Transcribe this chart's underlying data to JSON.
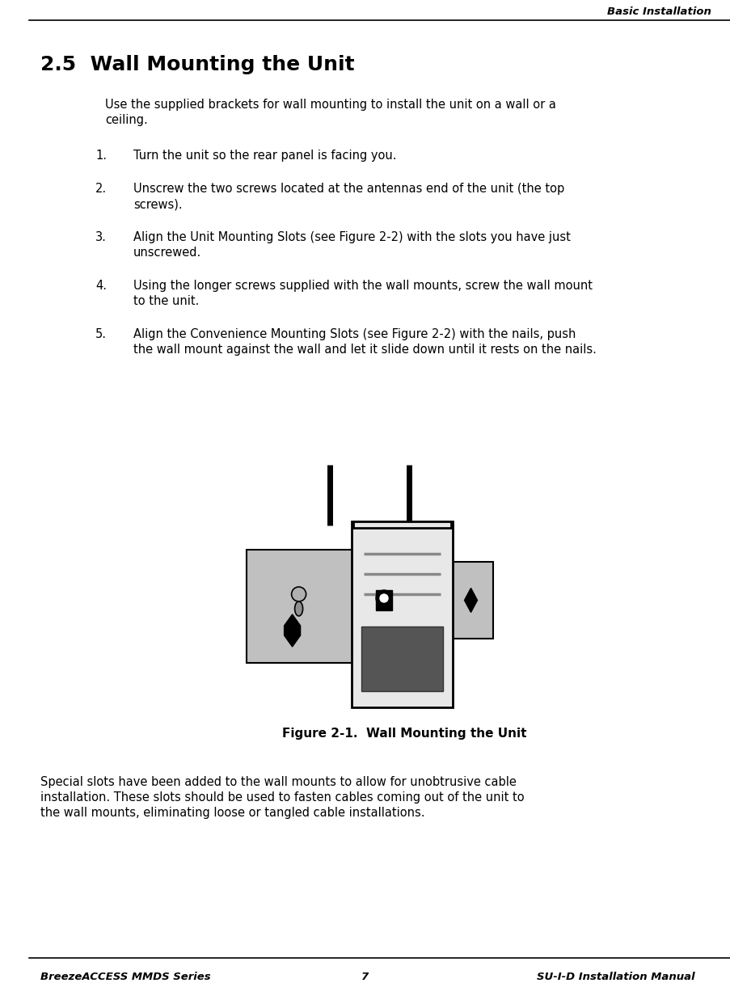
{
  "header_right": "Basic Installation",
  "title": "2.5  Wall Mounting the Unit",
  "intro_lines": [
    "Use the supplied brackets for wall mounting to install the unit on a wall or a",
    "ceiling."
  ],
  "step_texts": [
    [
      "Turn the unit so the rear panel is facing you."
    ],
    [
      "Unscrew the two screws located at the antennas end of the unit (the top",
      "screws)."
    ],
    [
      "Align the Unit Mounting Slots (see Figure 2-2) with the slots you have just",
      "unscrewed."
    ],
    [
      "Using the longer screws supplied with the wall mounts, screw the wall mount",
      "to the unit."
    ],
    [
      "Align the Convenience Mounting Slots (see Figure 2-2) with the nails, push",
      "the wall mount against the wall and let it slide down until it rests on the nails."
    ]
  ],
  "figure_caption": "Figure 2-1.  Wall Mounting the Unit",
  "closing_lines": [
    "Special slots have been added to the wall mounts to allow for unobtrusive cable",
    "installation. These slots should be used to fasten cables coming out of the unit to",
    "the wall mounts, eliminating loose or tangled cable installations."
  ],
  "footer_left": "BreezeACCESS MMDS Series",
  "footer_center": "7",
  "footer_right": "SU-I-D Installation Manual",
  "bg_color": "#ffffff",
  "text_color": "#000000",
  "gray_bracket": "#c0c0c0",
  "device_body": "#e8e8e8",
  "device_dark": "#555555",
  "line_gray": "#888888"
}
